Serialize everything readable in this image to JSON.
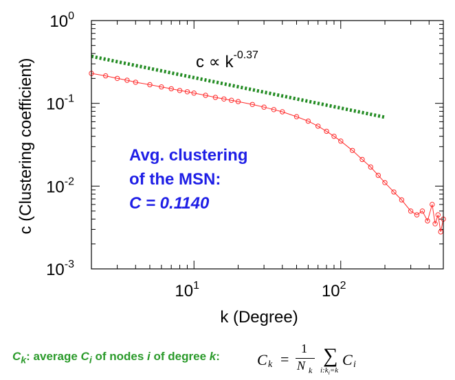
{
  "chart_data": {
    "type": "scatter",
    "xlabel": "k (Degree)",
    "ylabel": "c (Clustering coefficient)",
    "x_scale": "log",
    "y_scale": "log",
    "xlim": [
      2,
      500
    ],
    "ylim": [
      0.001,
      1
    ],
    "x_ticks": [
      {
        "value": 10,
        "base": "10",
        "exp": "1"
      },
      {
        "value": 100,
        "base": "10",
        "exp": "2"
      }
    ],
    "y_ticks": [
      {
        "value": 1,
        "base": "10",
        "exp": "0"
      },
      {
        "value": 0.1,
        "base": "10",
        "exp": "-1"
      },
      {
        "value": 0.01,
        "base": "10",
        "exp": "-2"
      },
      {
        "value": 0.001,
        "base": "10",
        "exp": "-3"
      }
    ],
    "series": [
      {
        "color": "#ff2a2a",
        "marker": "circle",
        "x": [
          2,
          2.5,
          3,
          3.5,
          4,
          5,
          6,
          7,
          8,
          9,
          10,
          12,
          14,
          16,
          18,
          20,
          25,
          30,
          35,
          40,
          50,
          60,
          70,
          80,
          90,
          100,
          120,
          140,
          160,
          180,
          200,
          230,
          260,
          300,
          330,
          360,
          390,
          420,
          440,
          460,
          480,
          500
        ],
        "y": [
          0.23,
          0.215,
          0.2,
          0.19,
          0.18,
          0.168,
          0.158,
          0.15,
          0.143,
          0.138,
          0.133,
          0.125,
          0.118,
          0.113,
          0.109,
          0.105,
          0.097,
          0.09,
          0.084,
          0.079,
          0.069,
          0.061,
          0.053,
          0.046,
          0.04,
          0.035,
          0.027,
          0.021,
          0.017,
          0.0135,
          0.011,
          0.0085,
          0.0068,
          0.005,
          0.0045,
          0.005,
          0.0038,
          0.006,
          0.0035,
          0.0045,
          0.0028,
          0.004
        ]
      },
      {
        "color": "#228b22",
        "style": "dotted",
        "x": [
          2,
          200
        ],
        "y": [
          0.37,
          0.068
        ]
      }
    ],
    "annotations": [
      {
        "text": "c ∝ k",
        "superscript": "-0.37"
      },
      {
        "text": "Avg. clustering"
      },
      {
        "text": "of the MSN:"
      },
      {
        "text": "C = 0.1140"
      }
    ]
  },
  "formula": {
    "description_parts": {
      "ck": "C",
      "k_sub": "k",
      "middle": ": average ",
      "ci": "C",
      "i_sub": "i",
      "of_nodes": " of nodes ",
      "i": "i",
      "of_degree": " of degree ",
      "k": "k",
      "colon": ":"
    },
    "math": {
      "lhs": "C",
      "lhs_sub": "k",
      "eq": "=",
      "num": "1",
      "den": "N",
      "den_sub": "k",
      "sum": "∑",
      "sum_sub": "i:k",
      "sum_sub_i": "i",
      "sum_sub_rest": "=k",
      "term": "C",
      "term_sub": "i"
    }
  }
}
